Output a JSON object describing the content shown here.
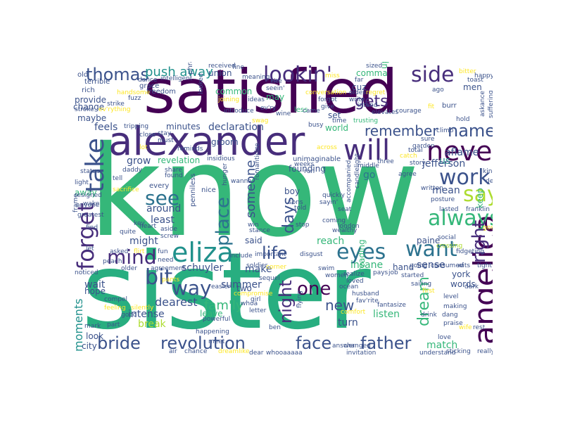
{
  "palette": {
    "dark_purple": "#440154",
    "deep_indigo": "#472d7b",
    "navy": "#3b528b",
    "steel_blue": "#2c728e",
    "teal": "#21918c",
    "sea_green": "#28ae80",
    "green": "#35b779",
    "lime": "#5ec962",
    "yellow_green": "#addc30",
    "yellow": "#fde725"
  },
  "words": {
    "know": "know",
    "sister": "sister",
    "satisfied": "satisfied",
    "alexander": "alexander",
    "will": "will",
    "never": "never",
    "angelica": "angelica",
    "eliza": "eliza",
    "take": "take",
    "forget": "forget",
    "lookin": "lookin'",
    "side": "side",
    "thomas": "thomas",
    "push_away": "push away",
    "remember": "remember",
    "name": "name",
    "work": "work",
    "say": "say",
    "always": "always",
    "eyes": "eyes",
    "want": "want",
    "mind": "mind",
    "see": "see",
    "bit": "bit",
    "way": "way",
    "life": "life",
    "place": "place",
    "night": "night",
    "right": "right",
    "one": "one",
    "new": "new",
    "face": "face",
    "father": "father",
    "bride": "bride",
    "revolution": "revolution",
    "dream": "dream",
    "days": "days",
    "someone": "someone",
    "gets": "gets",
    "moments": "moments",
    "famly": "fam'ly",
    "dearest": "dearest",
    "schuyler": "schuyler",
    "summer": "summer",
    "listen": "listen",
    "match": "match",
    "city": "city",
    "look": "look",
    "hope": "hope",
    "intense": "intense",
    "break": "break",
    "leave": "leave",
    "make": "make",
    "turn": "turn",
    "insane": "insane",
    "reach": "reach",
    "reading": "reading",
    "york": "york",
    "words": "words",
    "sense": "sense",
    "mean": "mean",
    "us": "us",
    "go": "go",
    "jefferson": "jefferson",
    "aflame": "aflame",
    "keep": "keep",
    "paine": "paine",
    "hand": "hand",
    "least": "least",
    "around": "around",
    "might": "might",
    "wait": "wait",
    "grow": "grow",
    "feels": "feels",
    "minutes": "minutes",
    "declaration": "declaration",
    "revelation": "revelation",
    "maybe": "maybe",
    "away": "away",
    "change": "change",
    "provide": "provide",
    "common": "common",
    "union": "union",
    "groom": "groom",
    "world": "world",
    "set": "set",
    "may": "may",
    "comma": "comma",
    "men": "men",
    "upstate": "upstate",
    "cuz": "cuz",
    "founding": "founding",
    "unimaginable": "unimaginable",
    "boy": "boy",
    "said": "said",
    "two": "two",
    "penniless": "penniless",
    "phrase": "phrase",
    "every": "every",
    "nice": "nice",
    "old": "old",
    "terrible": "terrible",
    "rich": "rich",
    "intelligent": "intelligent",
    "grace": "grace",
    "dance": "dance",
    "freedom": "freedom",
    "handsome": "handsome",
    "fuzz": "fuzz",
    "received": "received",
    "joining": "joining",
    "fine": "fine",
    "meaning": "meaning",
    "miss": "miss",
    "sized": "sized",
    "far": "far",
    "kite": "kite",
    "seein": "seein'",
    "introduce": "introduce",
    "evry": "ev'ry",
    "ideas": "ideas",
    "less": "less",
    "conversation": "conversation",
    "forgot": "forgot",
    "give": "give",
    "oldest": "oldest",
    "write": "write",
    "intend": "intend",
    "regret": "regret",
    "elevates": "elevates",
    "trusting": "trusting",
    "courage": "courage",
    "time": "time",
    "fit": "fit",
    "burr": "burr",
    "ago": "ago",
    "happy": "happy",
    "toast": "toast",
    "bitter": "bitter",
    "askance": "askance",
    "suffering": "suffering",
    "hold": "hold",
    "climb": "climb",
    "sure": "sure",
    "garden": "garden",
    "catch": "catch",
    "total": "total",
    "stop": "stop",
    "story": "story",
    "kind": "kind",
    "agree": "agree",
    "deep": "deep",
    "posture": "posture",
    "lasted": "lasted",
    "franklin": "franklin",
    "tight": "tight",
    "gossip": "gossip",
    "social": "social",
    "crossing": "crossing",
    "fidgeting": "fidgeting",
    "wits": "wits",
    "consumed": "consumed",
    "going": "going",
    "dark": "dark",
    "level": "level",
    "making": "making",
    "dang": "dang",
    "praise": "praise",
    "wife": "wife",
    "rest": "rest",
    "love": "love",
    "sticking": "sticking",
    "really": "really",
    "understand": "understand",
    "husband": "husband",
    "favrite": "fav'rite",
    "fantasize": "fantasize",
    "comfort": "comfort",
    "answer": "answer",
    "changed": "changed",
    "invitation": "invitation",
    "sailing": "sailing",
    "started": "started",
    "pays": "pays",
    "job": "job",
    "realize": "realize",
    "loved": "loved",
    "women": "women",
    "swim": "swim",
    "ocean": "ocean",
    "soldier": "soldier",
    "corner": "corner",
    "disgust": "disgust",
    "include": "include",
    "important": "important",
    "sequel": "sequel",
    "compromise": "compromise",
    "flying": "flying",
    "letter": "letter",
    "whoa": "whoa",
    "girl": "girl",
    "ben": "ben",
    "dear": "dear",
    "whooaaaaa": "whooaaaaa",
    "dreamlike": "dreamlike",
    "chance": "chance",
    "air": "air",
    "happening": "happening",
    "meet": "meet",
    "powerful": "powerful",
    "silently": "silently",
    "compel": "compel",
    "feeling": "feeling",
    "good": "good",
    "part": "part",
    "mark": "mark",
    "easier": "easier",
    "pants": "pants",
    "agreement": "agreement",
    "older": "older",
    "peach": "peach",
    "noticed": "noticed",
    "asked": "asked",
    "flirt": "flirt",
    "fun": "fun",
    "need": "need",
    "let": "let",
    "find": "find",
    "quite": "quite",
    "aside": "aside",
    "screw": "screw",
    "heart": "heart",
    "key": "key",
    "win": "win",
    "stance": "stance",
    "greatest": "greatest",
    "anyone": "anyone",
    "resigned": "resigned",
    "light": "light",
    "status": "status",
    "daddy": "daddy",
    "tell": "tell",
    "share": "share",
    "found": "found",
    "insidious": "insidious",
    "hunger": "hunger",
    "wanna": "wanna",
    "romanticize": "romanticize",
    "weeks": "weeks",
    "run": "run",
    "middle": "middle",
    "three": "three",
    "candlelight": "candlelight",
    "quickly": "quickly",
    "sayin": "sayin'",
    "seat": "seat",
    "coming": "coming",
    "wealthy": "wealthy",
    "london": "london",
    "accompanied": "accompanied",
    "written": "written",
    "sons": "sons",
    "told": "told",
    "busy": "busy",
    "came": "came",
    "wine": "wine",
    "across": "across",
    "tripping": "tripping",
    "close": "close",
    "stay": "stay",
    "must": "must",
    "lot": "lot",
    "reminds": "reminds",
    "looked": "looked",
    "swag": "swag",
    "strike": "strike",
    "evrything": "ev'rything",
    "stroke": "stroke",
    "first": "first",
    "drink": "drink",
    "frame": "frame",
    "wake": "wake",
    "sacrifice": "sacrifice"
  }
}
